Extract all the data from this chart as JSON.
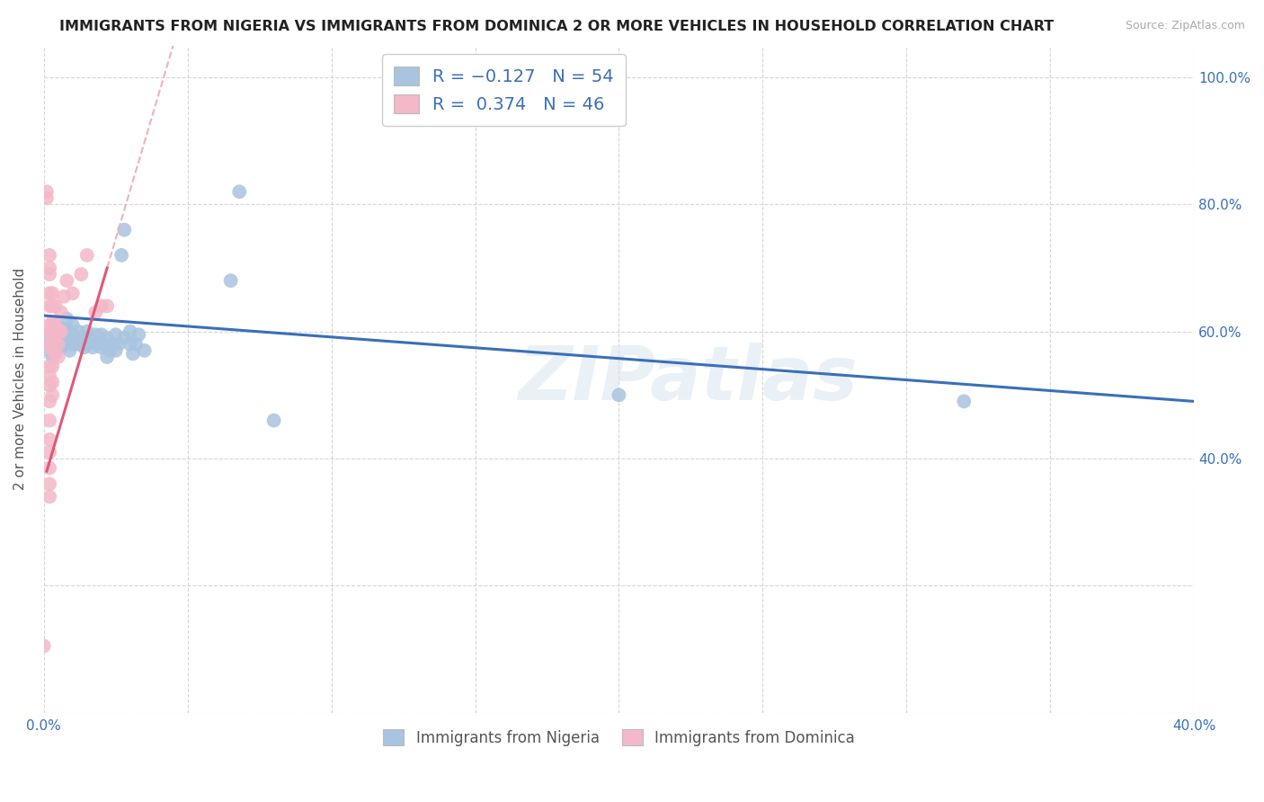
{
  "title": "IMMIGRANTS FROM NIGERIA VS IMMIGRANTS FROM DOMINICA 2 OR MORE VEHICLES IN HOUSEHOLD CORRELATION CHART",
  "source": "Source: ZipAtlas.com",
  "ylabel": "2 or more Vehicles in Household",
  "xlim": [
    0.0,
    0.4
  ],
  "ylim": [
    0.0,
    1.05
  ],
  "xticks": [
    0.0,
    0.05,
    0.1,
    0.15,
    0.2,
    0.25,
    0.3,
    0.35,
    0.4
  ],
  "yticks": [
    0.0,
    0.2,
    0.4,
    0.6,
    0.8,
    1.0
  ],
  "xticklabels": [
    "0.0%",
    "",
    "",
    "",
    "",
    "",
    "",
    "",
    "40.0%"
  ],
  "ytick_labels_right": [
    "",
    "",
    "40.0%",
    "60.0%",
    "80.0%",
    "100.0%"
  ],
  "nigeria_color": "#a8c4e0",
  "dominica_color": "#f4b8c8",
  "nigeria_line_color": "#3a6fba",
  "dominica_line_color": "#e05878",
  "dominica_dash_color": "#f0b0bc",
  "nigeria_scatter": [
    [
      0.001,
      0.59
    ],
    [
      0.002,
      0.57
    ],
    [
      0.003,
      0.6
    ],
    [
      0.003,
      0.56
    ],
    [
      0.004,
      0.59
    ],
    [
      0.004,
      0.61
    ],
    [
      0.005,
      0.58
    ],
    [
      0.005,
      0.6
    ],
    [
      0.006,
      0.575
    ],
    [
      0.006,
      0.605
    ],
    [
      0.007,
      0.59
    ],
    [
      0.007,
      0.58
    ],
    [
      0.008,
      0.6
    ],
    [
      0.008,
      0.62
    ],
    [
      0.009,
      0.57
    ],
    [
      0.009,
      0.6
    ],
    [
      0.01,
      0.58
    ],
    [
      0.01,
      0.595
    ],
    [
      0.01,
      0.61
    ],
    [
      0.011,
      0.59
    ],
    [
      0.012,
      0.58
    ],
    [
      0.012,
      0.6
    ],
    [
      0.013,
      0.59
    ],
    [
      0.014,
      0.575
    ],
    [
      0.015,
      0.6
    ],
    [
      0.015,
      0.58
    ],
    [
      0.016,
      0.59
    ],
    [
      0.017,
      0.575
    ],
    [
      0.018,
      0.595
    ],
    [
      0.019,
      0.58
    ],
    [
      0.02,
      0.595
    ],
    [
      0.02,
      0.575
    ],
    [
      0.021,
      0.58
    ],
    [
      0.022,
      0.56
    ],
    [
      0.022,
      0.59
    ],
    [
      0.023,
      0.57
    ],
    [
      0.024,
      0.58
    ],
    [
      0.025,
      0.595
    ],
    [
      0.025,
      0.57
    ],
    [
      0.026,
      0.58
    ],
    [
      0.027,
      0.72
    ],
    [
      0.028,
      0.76
    ],
    [
      0.028,
      0.59
    ],
    [
      0.03,
      0.58
    ],
    [
      0.03,
      0.6
    ],
    [
      0.031,
      0.565
    ],
    [
      0.032,
      0.58
    ],
    [
      0.033,
      0.595
    ],
    [
      0.035,
      0.57
    ],
    [
      0.065,
      0.68
    ],
    [
      0.068,
      0.82
    ],
    [
      0.08,
      0.46
    ],
    [
      0.2,
      0.5
    ],
    [
      0.32,
      0.49
    ]
  ],
  "dominica_scatter": [
    [
      0.0,
      0.105
    ],
    [
      0.001,
      0.81
    ],
    [
      0.001,
      0.82
    ],
    [
      0.002,
      0.72
    ],
    [
      0.002,
      0.7
    ],
    [
      0.002,
      0.69
    ],
    [
      0.002,
      0.66
    ],
    [
      0.002,
      0.64
    ],
    [
      0.002,
      0.61
    ],
    [
      0.002,
      0.6
    ],
    [
      0.002,
      0.58
    ],
    [
      0.002,
      0.545
    ],
    [
      0.002,
      0.53
    ],
    [
      0.002,
      0.515
    ],
    [
      0.002,
      0.49
    ],
    [
      0.002,
      0.46
    ],
    [
      0.002,
      0.43
    ],
    [
      0.002,
      0.41
    ],
    [
      0.002,
      0.385
    ],
    [
      0.002,
      0.36
    ],
    [
      0.002,
      0.34
    ],
    [
      0.003,
      0.66
    ],
    [
      0.003,
      0.64
    ],
    [
      0.003,
      0.615
    ],
    [
      0.003,
      0.595
    ],
    [
      0.003,
      0.57
    ],
    [
      0.003,
      0.545
    ],
    [
      0.003,
      0.52
    ],
    [
      0.003,
      0.5
    ],
    [
      0.004,
      0.64
    ],
    [
      0.004,
      0.61
    ],
    [
      0.004,
      0.59
    ],
    [
      0.004,
      0.565
    ],
    [
      0.005,
      0.6
    ],
    [
      0.005,
      0.58
    ],
    [
      0.005,
      0.56
    ],
    [
      0.006,
      0.63
    ],
    [
      0.006,
      0.6
    ],
    [
      0.007,
      0.655
    ],
    [
      0.008,
      0.68
    ],
    [
      0.01,
      0.66
    ],
    [
      0.013,
      0.69
    ],
    [
      0.015,
      0.72
    ],
    [
      0.018,
      0.63
    ],
    [
      0.02,
      0.64
    ],
    [
      0.022,
      0.64
    ]
  ],
  "watermark_text": "ZIPatlas",
  "legend_label_blue": "Immigrants from Nigeria",
  "legend_label_pink": "Immigrants from Dominica"
}
